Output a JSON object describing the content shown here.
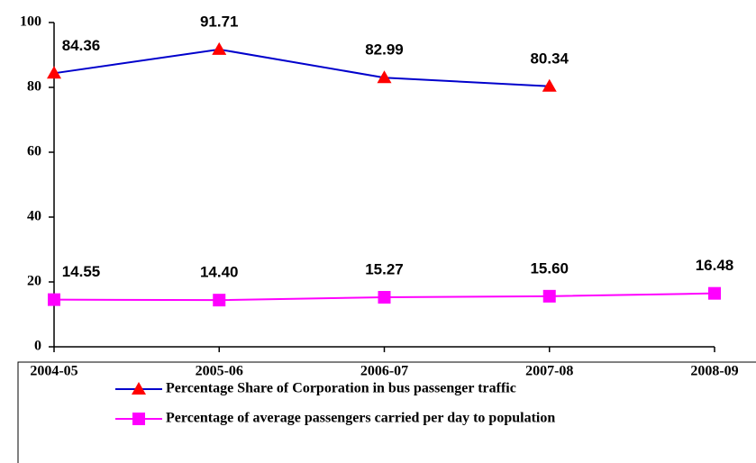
{
  "chart_data": {
    "type": "line",
    "categories": [
      "2004-05",
      "2005-06",
      "2006-07",
      "2007-08",
      "2008-09"
    ],
    "series": [
      {
        "name": "Percentage Share of Corporation in bus passenger traffic",
        "color": "#0000cc",
        "marker": "triangle",
        "marker_color": "#ff0000",
        "values": [
          84.36,
          91.71,
          82.99,
          80.34,
          null
        ],
        "value_labels": [
          "84.36",
          "91.71",
          "82.99",
          "80.34",
          null
        ]
      },
      {
        "name": "Percentage of average passengers carried per day to population",
        "color": "#ff00ff",
        "marker": "square",
        "marker_color": "#ff00ff",
        "values": [
          14.55,
          14.4,
          15.27,
          15.6,
          16.48
        ],
        "value_labels": [
          "14.55",
          "14.40",
          "15.27",
          "15.60",
          "16.48"
        ]
      }
    ],
    "ylim": [
      0,
      100
    ],
    "yticks": [
      0,
      20,
      40,
      60,
      80,
      100
    ],
    "grid": false,
    "legend": "bottom"
  }
}
